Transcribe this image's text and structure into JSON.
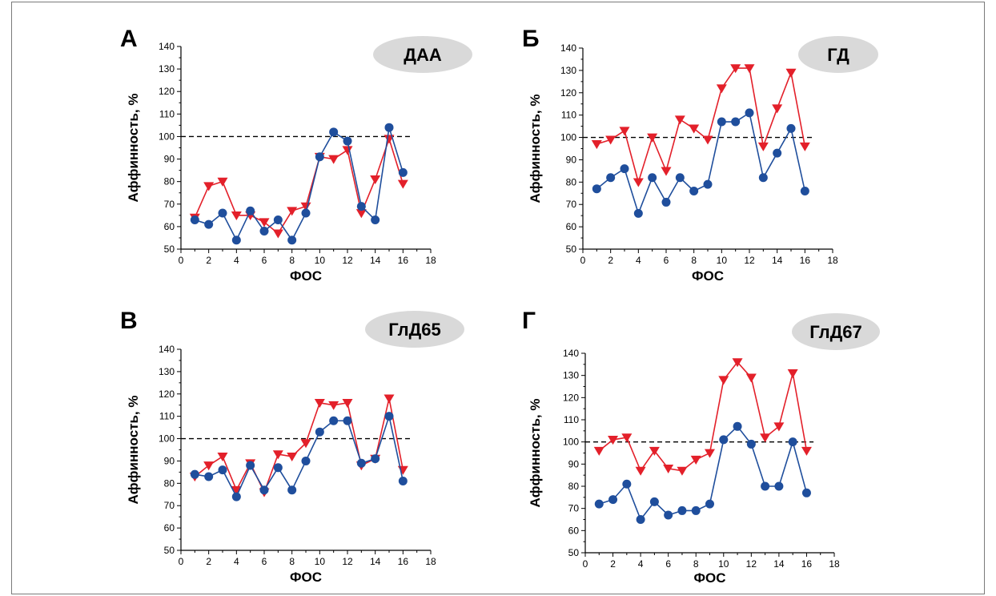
{
  "colors": {
    "red": "#e3202a",
    "blue": "#1f4e9c",
    "badge": "#d9d9d9",
    "axis": "#000000",
    "reference": "#000000"
  },
  "charts": [
    {
      "letter": "А",
      "badge": "ДАА",
      "xlabel": "ФОС",
      "ylabel": "Аффинность, %",
      "xlim": [
        0,
        18
      ],
      "ylim": [
        50,
        140
      ],
      "xticks": [
        0,
        2,
        4,
        6,
        8,
        10,
        12,
        14,
        16,
        18
      ],
      "yticks": [
        50,
        60,
        70,
        80,
        90,
        100,
        110,
        120,
        130,
        140
      ],
      "reference_line": 100,
      "type": "line",
      "x": [
        1,
        2,
        3,
        4,
        5,
        6,
        7,
        8,
        9,
        10,
        11,
        12,
        13,
        14,
        15,
        16
      ],
      "series": [
        {
          "marker": "triangle-down",
          "color": "#e3202a",
          "values": [
            64,
            78,
            80,
            65,
            65,
            62,
            57,
            67,
            69,
            91,
            90,
            94,
            66,
            81,
            99,
            79
          ]
        },
        {
          "marker": "circle",
          "color": "#1f4e9c",
          "values": [
            63,
            61,
            66,
            54,
            67,
            58,
            63,
            54,
            66,
            91,
            102,
            98,
            69,
            63,
            104,
            84
          ]
        }
      ]
    },
    {
      "letter": "Б",
      "badge": "ГД",
      "xlabel": "ФОС",
      "ylabel": "Аффинность, %",
      "xlim": [
        0,
        18
      ],
      "ylim": [
        50,
        140
      ],
      "xticks": [
        0,
        2,
        4,
        6,
        8,
        10,
        12,
        14,
        16,
        18
      ],
      "yticks": [
        50,
        60,
        70,
        80,
        90,
        100,
        110,
        120,
        130,
        140
      ],
      "reference_line": 100,
      "type": "line",
      "x": [
        1,
        2,
        3,
        4,
        5,
        6,
        7,
        8,
        9,
        10,
        11,
        12,
        13,
        14,
        15,
        16
      ],
      "series": [
        {
          "marker": "triangle-down",
          "color": "#e3202a",
          "values": [
            97,
            99,
            103,
            80,
            100,
            85,
            108,
            104,
            99,
            122,
            131,
            131,
            96,
            113,
            129,
            96
          ]
        },
        {
          "marker": "circle",
          "color": "#1f4e9c",
          "values": [
            77,
            82,
            86,
            66,
            82,
            71,
            82,
            76,
            79,
            107,
            107,
            111,
            82,
            93,
            104,
            76
          ]
        }
      ]
    },
    {
      "letter": "В",
      "badge": "ГлД65",
      "xlabel": "ФОС",
      "ylabel": "Аффинность, %",
      "xlim": [
        0,
        18
      ],
      "ylim": [
        50,
        140
      ],
      "xticks": [
        0,
        2,
        4,
        6,
        8,
        10,
        12,
        14,
        16,
        18
      ],
      "yticks": [
        50,
        60,
        70,
        80,
        90,
        100,
        110,
        120,
        130,
        140
      ],
      "reference_line": 100,
      "type": "line",
      "x": [
        1,
        2,
        3,
        4,
        5,
        6,
        7,
        8,
        9,
        10,
        11,
        12,
        13,
        14,
        15,
        16
      ],
      "series": [
        {
          "marker": "triangle-down",
          "color": "#e3202a",
          "values": [
            83,
            88,
            92,
            77,
            89,
            76,
            93,
            92,
            98,
            116,
            115,
            116,
            88,
            91,
            118,
            86
          ]
        },
        {
          "marker": "circle",
          "color": "#1f4e9c",
          "values": [
            84,
            83,
            86,
            74,
            88,
            77,
            87,
            77,
            90,
            103,
            108,
            108,
            89,
            91,
            110,
            81
          ]
        }
      ]
    },
    {
      "letter": "Г",
      "badge": "ГлД67",
      "xlabel": "ФОС",
      "ylabel": "Аффинность, %",
      "xlim": [
        0,
        18
      ],
      "ylim": [
        50,
        140
      ],
      "xticks": [
        0,
        2,
        4,
        6,
        8,
        10,
        12,
        14,
        16,
        18
      ],
      "yticks": [
        50,
        60,
        70,
        80,
        90,
        100,
        110,
        120,
        130,
        140
      ],
      "reference_line": 100,
      "type": "line",
      "x": [
        1,
        2,
        3,
        4,
        5,
        6,
        7,
        8,
        9,
        10,
        11,
        12,
        13,
        14,
        15,
        16
      ],
      "series": [
        {
          "marker": "triangle-down",
          "color": "#e3202a",
          "values": [
            96,
            101,
            102,
            87,
            96,
            88,
            87,
            92,
            95,
            128,
            136,
            129,
            102,
            107,
            131,
            96
          ]
        },
        {
          "marker": "circle",
          "color": "#1f4e9c",
          "values": [
            72,
            74,
            81,
            65,
            73,
            67,
            69,
            69,
            72,
            101,
            107,
            99,
            80,
            80,
            100,
            77
          ]
        }
      ]
    }
  ]
}
